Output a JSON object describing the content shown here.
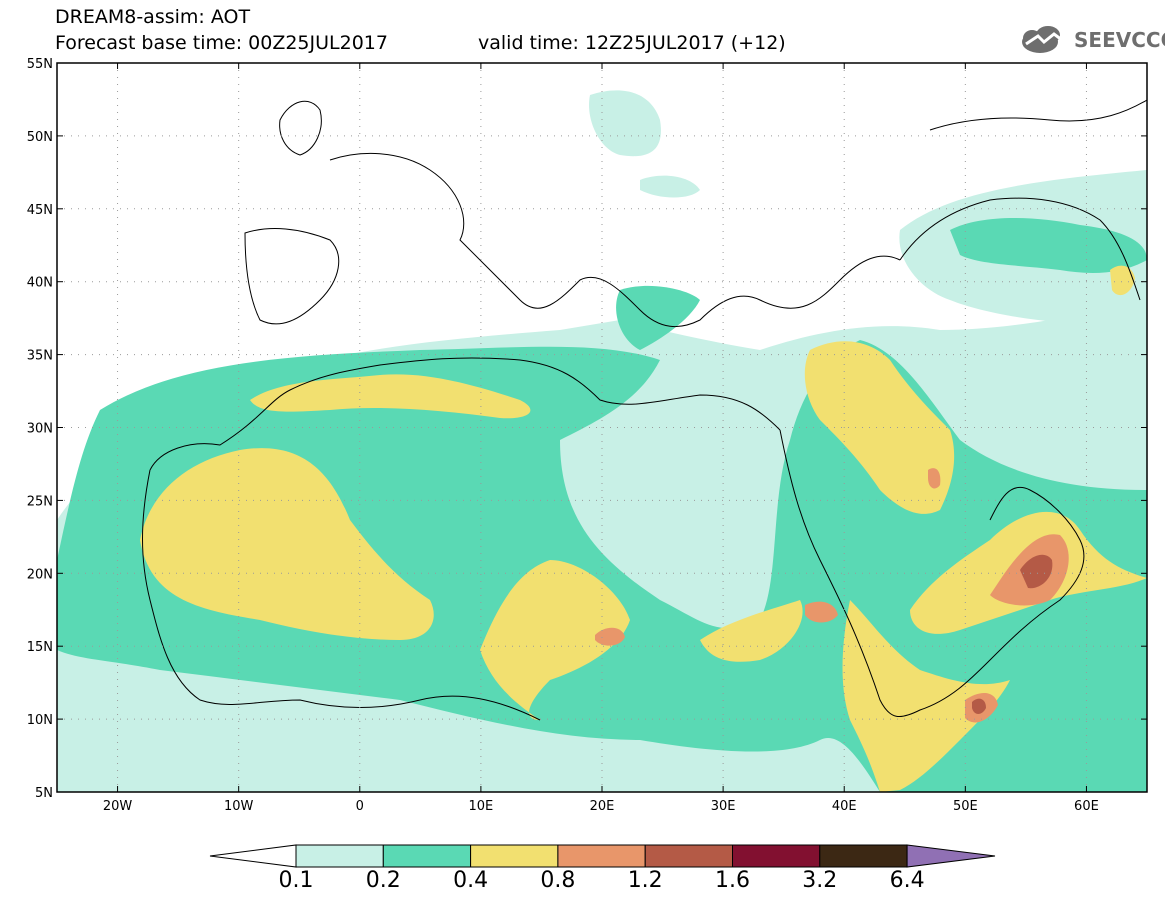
{
  "header": {
    "model": "DREAM8-assim: AOT",
    "base_time": "Forecast base time: 00Z25JUL2017",
    "valid_time": "valid time: 12Z25JUL2017 (+12)"
  },
  "logo": {
    "text": "SEEVCCC",
    "icon": "cloud-icon"
  },
  "map": {
    "lat_range": [
      5,
      55
    ],
    "lon_range": [
      -25,
      65
    ],
    "lat_ticks": [
      "5N",
      "10N",
      "15N",
      "20N",
      "25N",
      "30N",
      "35N",
      "40N",
      "45N",
      "50N",
      "55N"
    ],
    "lon_ticks": [
      "20W",
      "10W",
      "0",
      "10E",
      "20E",
      "30E",
      "40E",
      "50E",
      "60E"
    ]
  },
  "legend": {
    "levels": [
      "0.1",
      "0.2",
      "0.4",
      "0.8",
      "1.2",
      "1.6",
      "3.2",
      "6.4"
    ],
    "colors": [
      "#c8f0e6",
      "#5ad9b4",
      "#f2e070",
      "#e8966a",
      "#b45a46",
      "#821030",
      "#3c2814",
      "#9070b4"
    ]
  }
}
